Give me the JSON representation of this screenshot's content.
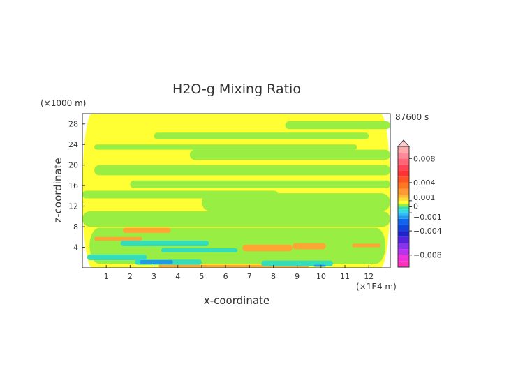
{
  "chart_data": {
    "type": "heatmap",
    "title": "H2O-g Mixing Ratio",
    "xlabel": "x-coordinate",
    "ylabel": "z-coordinate",
    "x_unit": "(×1E4 m)",
    "y_unit": "(×1000 m)",
    "time_label": "87600 s",
    "xlim": [
      0,
      12.9
    ],
    "ylim": [
      0,
      30
    ],
    "x_ticks": [
      "1",
      "2",
      "3",
      "4",
      "5",
      "6",
      "7",
      "8",
      "9",
      "10",
      "11",
      "12"
    ],
    "y_ticks": [
      "4",
      "8",
      "12",
      "16",
      "20",
      "24",
      "28"
    ],
    "colorbar": {
      "tick_labels": [
        "0.008",
        "0.004",
        "0.001",
        "0",
        "−0.001",
        "−0.004",
        "−0.008"
      ],
      "tick_values": [
        0.008,
        0.004,
        0.001,
        0,
        -0.001,
        -0.004,
        -0.008
      ],
      "range": [
        -0.01,
        0.01
      ],
      "extend": "max"
    },
    "colors": {
      "yellow": "#ffff33",
      "green": "#99ee44",
      "orange": "#ffa533",
      "cyan": "#33ddbb",
      "blue": "#2299ee"
    },
    "field_regions": [
      {
        "level": "yellow",
        "x": [
          0,
          12.9
        ],
        "z": [
          0,
          30
        ]
      },
      {
        "level": "green",
        "x": [
          0.3,
          12.7
        ],
        "z": [
          0.8,
          7.8
        ]
      },
      {
        "level": "green",
        "x": [
          0,
          12.9
        ],
        "z": [
          8.0,
          11.0
        ]
      },
      {
        "level": "green",
        "x": [
          5.0,
          12.9
        ],
        "z": [
          11.0,
          14.5
        ]
      },
      {
        "level": "green",
        "x": [
          0,
          8.2
        ],
        "z": [
          13.5,
          15.0
        ]
      },
      {
        "level": "green",
        "x": [
          2.0,
          12.9
        ],
        "z": [
          15.5,
          17.0
        ]
      },
      {
        "level": "green",
        "x": [
          0.5,
          12.9
        ],
        "z": [
          18.0,
          20.0
        ]
      },
      {
        "level": "green",
        "x": [
          4.5,
          12.9
        ],
        "z": [
          21.0,
          23.0
        ]
      },
      {
        "level": "green",
        "x": [
          0.5,
          11.5
        ],
        "z": [
          23.0,
          24.0
        ]
      },
      {
        "level": "green",
        "x": [
          3.0,
          12.0
        ],
        "z": [
          25.0,
          26.3
        ]
      },
      {
        "level": "green",
        "x": [
          8.5,
          12.9
        ],
        "z": [
          27.0,
          28.5
        ]
      },
      {
        "level": "orange",
        "x": [
          1.7,
          3.7
        ],
        "z": [
          6.8,
          7.8
        ]
      },
      {
        "level": "orange",
        "x": [
          0.5,
          2.5
        ],
        "z": [
          5.3,
          6.0
        ]
      },
      {
        "level": "orange",
        "x": [
          6.7,
          8.8
        ],
        "z": [
          3.2,
          4.5
        ]
      },
      {
        "level": "orange",
        "x": [
          8.8,
          10.2
        ],
        "z": [
          3.6,
          4.8
        ]
      },
      {
        "level": "orange",
        "x": [
          11.3,
          12.5
        ],
        "z": [
          4.0,
          4.7
        ]
      },
      {
        "level": "orange",
        "x": [
          3.2,
          9.5
        ],
        "z": [
          0.1,
          0.6
        ]
      },
      {
        "level": "cyan",
        "x": [
          1.6,
          5.3
        ],
        "z": [
          4.2,
          5.3
        ]
      },
      {
        "level": "cyan",
        "x": [
          0.2,
          2.7
        ],
        "z": [
          1.5,
          2.6
        ]
      },
      {
        "level": "cyan",
        "x": [
          3.3,
          6.5
        ],
        "z": [
          3.0,
          3.8
        ]
      },
      {
        "level": "cyan",
        "x": [
          2.2,
          5.0
        ],
        "z": [
          0.6,
          1.6
        ]
      },
      {
        "level": "cyan",
        "x": [
          7.5,
          10.5
        ],
        "z": [
          0.3,
          1.4
        ]
      },
      {
        "level": "blue",
        "x": [
          2.4,
          3.8
        ],
        "z": [
          0.8,
          1.5
        ]
      },
      {
        "level": "blue",
        "x": [
          9.7,
          10.2
        ],
        "z": [
          0.2,
          0.6
        ]
      }
    ]
  }
}
